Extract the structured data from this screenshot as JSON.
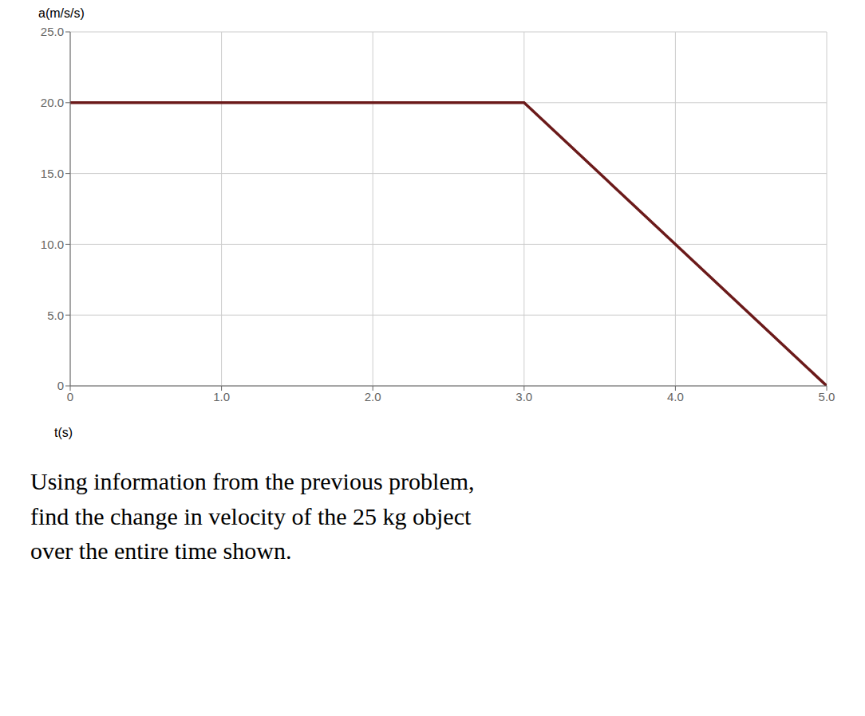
{
  "chart_data": {
    "type": "line",
    "x": [
      0,
      3.0,
      5.0
    ],
    "values": [
      20.0,
      20.0,
      0.0
    ],
    "color": "#6B1A1A",
    "xlim": [
      0,
      5.0
    ],
    "ylim": [
      0,
      25.0
    ],
    "xticks": [
      0,
      {
        "value": 1.0,
        "label": "1.0"
      },
      {
        "value": 2.0,
        "label": "2.0"
      },
      {
        "value": 3.0,
        "label": "3.0"
      },
      {
        "value": 4.0,
        "label": "4.0"
      },
      {
        "value": 5.0,
        "label": "5.0"
      }
    ],
    "yticks": [
      0,
      {
        "value": 5.0,
        "label": "5.0"
      },
      {
        "value": 10.0,
        "label": "10.0"
      },
      {
        "value": 15.0,
        "label": "15.0"
      },
      {
        "value": 20.0,
        "label": "20.0"
      },
      {
        "value": 25.0,
        "label": "25.0"
      }
    ],
    "xlabel": "t(s)",
    "ylabel": "a(m/s/s)",
    "grid": true,
    "annotation": "Using information from the previous problem,\nfind the change in velocity of the 25 kg object\nover the entire time shown."
  }
}
